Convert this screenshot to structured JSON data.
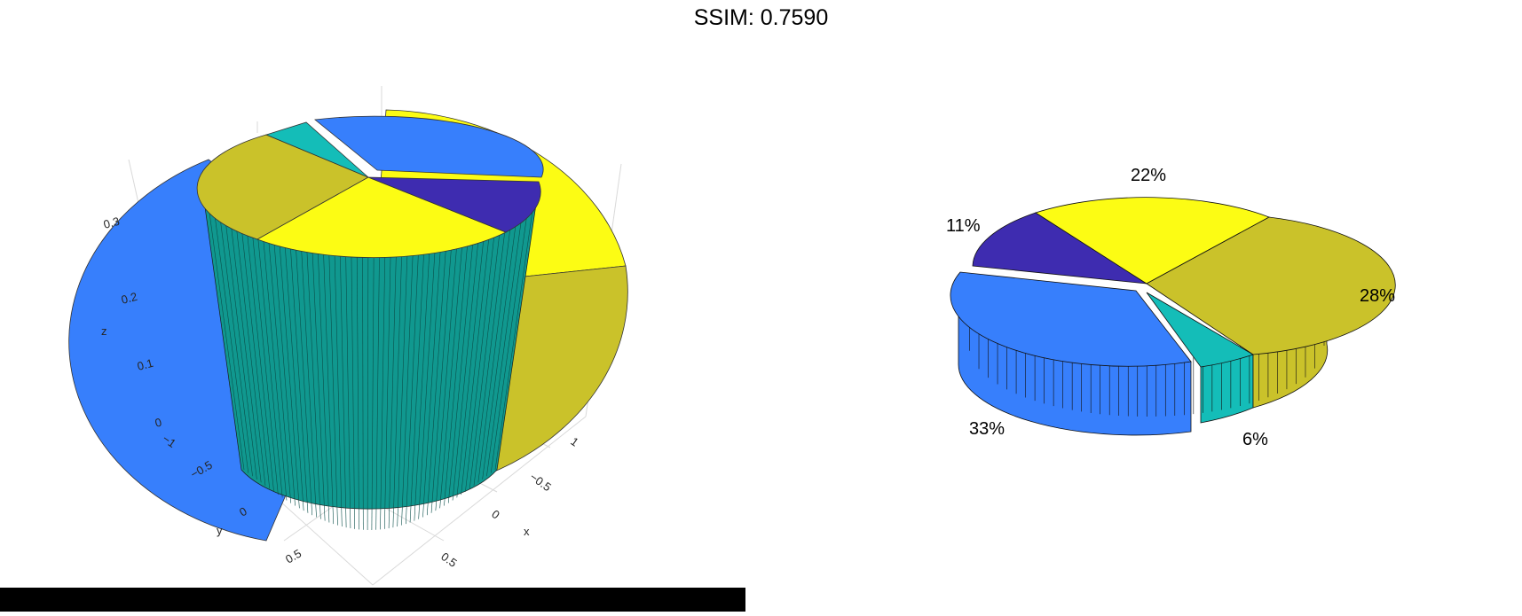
{
  "title": "SSIM: 0.7590",
  "chart_data": [
    {
      "type": "pie",
      "name": "left-3d-plot",
      "view": "3d-axes",
      "axis_labels": {
        "x": "x",
        "y": "y",
        "z": "z"
      },
      "x_ticks": [
        "1",
        "−0.5",
        "0",
        "0.5"
      ],
      "y_ticks": [
        "−1",
        "−0.5",
        "0",
        "0.5"
      ],
      "z_ticks": [
        "0",
        "0.1",
        "0.2",
        "0.3"
      ],
      "grid": true,
      "colors": [
        "#3e2cb0",
        "#fcfc14",
        "#cac22a",
        "#14bdb8",
        "#377ffc",
        "#10988f"
      ]
    },
    {
      "type": "pie",
      "name": "right-3d-pie",
      "view": "3d",
      "labels": [
        "11%",
        "22%",
        "28%",
        "6%",
        "33%"
      ],
      "values": [
        11,
        22,
        28,
        6,
        33
      ],
      "colors": [
        "#3e2cb0",
        "#fcfc14",
        "#cac22a",
        "#14bdb8",
        "#377ffc"
      ]
    }
  ]
}
